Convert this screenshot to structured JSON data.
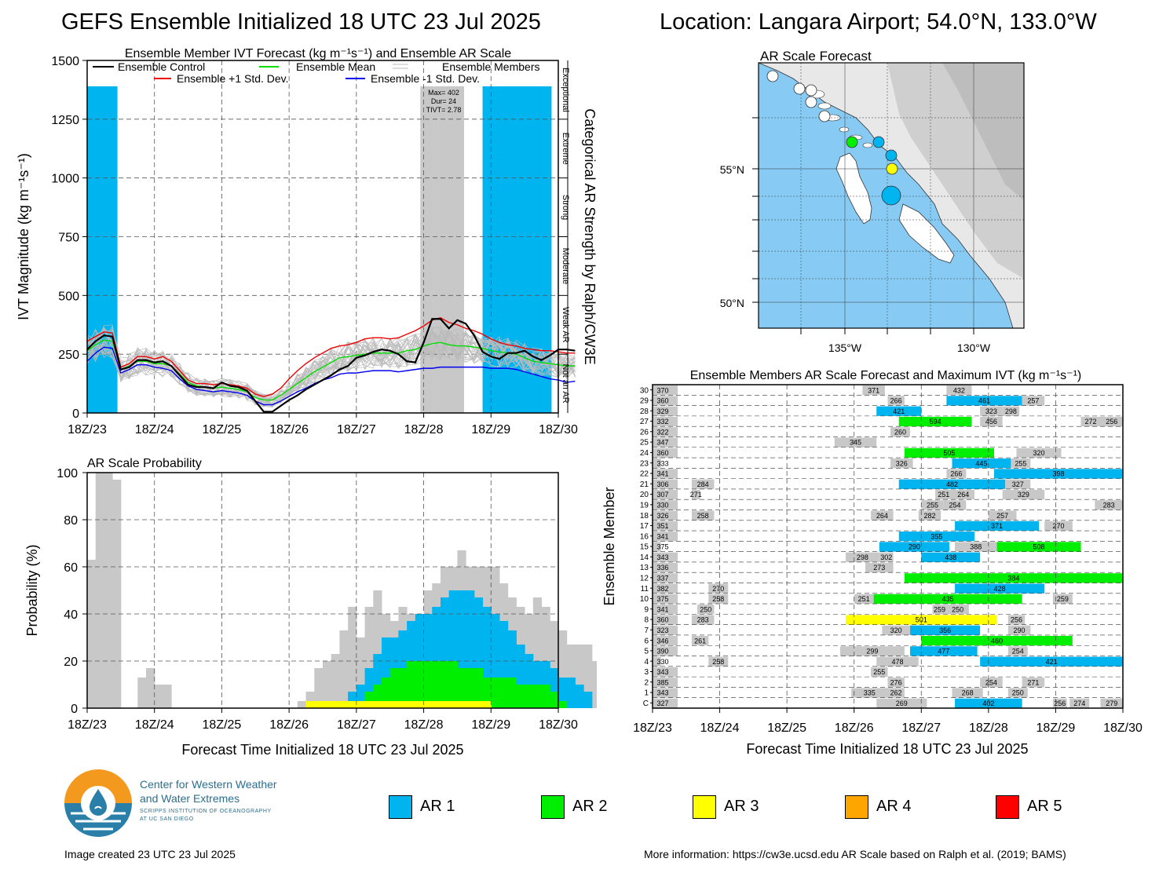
{
  "header": {
    "title": "GEFS Ensemble Initialized 18 UTC 23 Jul 2025",
    "location": "Location: Langara Airport; 54.0°N, 133.0°W"
  },
  "colors": {
    "ar1": "#00b4f0",
    "ar2": "#00ee00",
    "ar3": "#ffff00",
    "ar4": "#ffa500",
    "ar5": "#ff0000",
    "gray": "#c8c8c8",
    "ocean": "#87cbf5"
  },
  "time_ticks": [
    "18Z/23",
    "18Z/24",
    "18Z/25",
    "18Z/26",
    "18Z/27",
    "18Z/28",
    "18Z/29",
    "18Z/30"
  ],
  "chart_data": [
    {
      "type": "line",
      "title": "Ensemble Member IVT Forecast (kg m⁻¹s⁻¹) and Ensemble AR Scale",
      "ylabel": "IVT Magnitude (kg m⁻¹s⁻¹)",
      "ylabel_right": "Categorical AR Strength by Ralph/CW3E",
      "ylim": [
        0,
        1500
      ],
      "yticks": [
        0,
        250,
        500,
        750,
        1000,
        1250,
        1500
      ],
      "category_labels": [
        "Not an AR",
        "Weak AR",
        "Moderate",
        "Strong",
        "Extreme",
        "Exceptional"
      ],
      "legend": {
        "control": "Ensemble Control",
        "mean": "Ensemble Mean",
        "members": "Ensemble Members",
        "plus": "Ensemble +1 Std. Dev.",
        "minus": "Ensemble -1 Std. Dev."
      },
      "annotation": {
        "max": "Max= 402",
        "dur": "Dur= 24",
        "tivt": "TIVT= 2.78"
      },
      "x_hours_step": 6,
      "series": [
        {
          "name": "Ensemble Control",
          "color": "#000000",
          "values": [
            270,
            305,
            330,
            325,
            185,
            195,
            225,
            225,
            215,
            220,
            200,
            160,
            120,
            110,
            110,
            105,
            130,
            115,
            110,
            95,
            50,
            5,
            5,
            30,
            55,
            75,
            100,
            120,
            140,
            160,
            185,
            200,
            235,
            245,
            260,
            270,
            265,
            250,
            220,
            215,
            300,
            400,
            400,
            360,
            395,
            380,
            330,
            260,
            240,
            230,
            255,
            255,
            265,
            240,
            225,
            245,
            270,
            270,
            265
          ]
        },
        {
          "name": "Ensemble Mean",
          "color": "#00dd00",
          "values": [
            265,
            290,
            310,
            305,
            185,
            200,
            220,
            220,
            210,
            210,
            200,
            165,
            130,
            115,
            110,
            105,
            110,
            105,
            100,
            90,
            65,
            55,
            55,
            75,
            100,
            125,
            150,
            175,
            195,
            215,
            235,
            240,
            245,
            250,
            255,
            255,
            255,
            255,
            265,
            270,
            285,
            295,
            300,
            290,
            285,
            285,
            280,
            275,
            265,
            260,
            255,
            250,
            235,
            220,
            215,
            210,
            205,
            200,
            200
          ]
        },
        {
          "name": "Ensemble +1 Std. Dev.",
          "color": "#ee0000",
          "values": [
            305,
            325,
            345,
            340,
            195,
            210,
            240,
            240,
            230,
            240,
            220,
            180,
            140,
            125,
            125,
            120,
            125,
            120,
            115,
            105,
            80,
            70,
            80,
            105,
            145,
            180,
            210,
            235,
            255,
            275,
            285,
            290,
            300,
            315,
            320,
            320,
            315,
            320,
            335,
            350,
            370,
            395,
            405,
            385,
            375,
            360,
            350,
            335,
            315,
            300,
            290,
            285,
            275,
            270,
            265,
            265,
            260,
            255,
            255
          ]
        },
        {
          "name": "Ensemble -1 Std. Dev.",
          "color": "#0000ee",
          "values": [
            220,
            255,
            280,
            275,
            170,
            185,
            205,
            205,
            195,
            190,
            180,
            145,
            115,
            100,
            95,
            90,
            95,
            90,
            85,
            75,
            50,
            35,
            35,
            50,
            70,
            90,
            105,
            125,
            140,
            150,
            165,
            170,
            170,
            175,
            180,
            180,
            180,
            175,
            180,
            185,
            190,
            190,
            195,
            195,
            195,
            195,
            195,
            195,
            190,
            190,
            190,
            185,
            175,
            165,
            155,
            145,
            140,
            130,
            135
          ]
        }
      ],
      "ar_shading": [
        {
          "start": 0,
          "end": 0.9,
          "top": 1390,
          "class": "ar1"
        },
        {
          "start": 9.9,
          "end": 10.3,
          "top": 1390,
          "class": "gray"
        },
        {
          "start": 10.3,
          "end": 11.2,
          "top": 1390,
          "class": "gray"
        },
        {
          "start": 11.75,
          "end": 13.8,
          "top": 1390,
          "class": "ar1"
        },
        {
          "start": 15.85,
          "end": 16.2,
          "top": 1390,
          "class": "gray"
        },
        {
          "start": 16.75,
          "end": 17.0,
          "top": 1390,
          "class": "gray"
        }
      ]
    },
    {
      "type": "area",
      "title": "AR Scale Probability",
      "ylabel": "Probability (%)",
      "ylim": [
        0,
        100
      ],
      "yticks": [
        0,
        20,
        40,
        60,
        80,
        100
      ],
      "xlabel": "Forecast Time Initialized 18 UTC 23 Jul 2025",
      "x_hours_step": 3,
      "series": [
        {
          "name": "AR 1+",
          "class": "gray",
          "values": [
            63,
            100,
            100,
            97,
            0,
            0,
            0,
            0,
            0,
            0,
            0,
            0,
            0,
            0,
            0,
            0,
            0,
            0,
            0,
            0,
            0,
            0,
            0,
            0,
            0,
            0,
            0,
            0,
            0,
            0,
            0,
            0,
            0,
            0,
            0,
            0,
            0,
            0,
            0,
            0,
            0,
            0,
            0,
            0,
            0,
            0,
            0,
            0,
            0,
            0,
            0,
            0,
            0,
            0,
            0,
            0,
            0,
            0,
            0,
            0,
            0,
            0,
            0,
            0,
            0,
            0,
            0,
            0,
            0,
            0,
            0,
            0,
            0,
            0,
            0,
            0,
            0,
            0,
            0,
            0,
            0,
            0,
            0,
            0,
            0,
            0,
            0,
            0,
            0,
            0,
            0,
            0,
            0,
            0,
            0,
            0,
            0,
            0,
            0,
            0,
            0,
            0,
            0,
            0,
            0,
            0,
            0,
            0,
            0,
            0,
            0,
            0,
            0,
            0,
            0,
            0,
            0
          ]
        },
        {
          "name": "AR 1+ prob",
          "class": "gray",
          "values": [
            63,
            100,
            100,
            97,
            0,
            0,
            13,
            17,
            10,
            10,
            0,
            0,
            0,
            0,
            0,
            0,
            0,
            0,
            0,
            0,
            0,
            0,
            0,
            0,
            0,
            0,
            0,
            0,
            0,
            0,
            0,
            0,
            0,
            0,
            0,
            0,
            0,
            0,
            0,
            0,
            0,
            0,
            0,
            0,
            0,
            0,
            0,
            0,
            0,
            0,
            0,
            0,
            0,
            0,
            0,
            0,
            0,
            0,
            0,
            0,
            0,
            0,
            0,
            0,
            0,
            0,
            0,
            0,
            0,
            0,
            0,
            0,
            0,
            0,
            0,
            0,
            0,
            0,
            0,
            0,
            0,
            0,
            0,
            0,
            0,
            0,
            0,
            0,
            0,
            0,
            0,
            0,
            0,
            0,
            0,
            0,
            0,
            0,
            0,
            0,
            0,
            0,
            0,
            0,
            0,
            0,
            0,
            0,
            0,
            0,
            0,
            0,
            0,
            0,
            0,
            0,
            0
          ]
        }
      ]
    },
    {
      "type": "table",
      "title": "Ensemble Members AR Scale Forecast and Maximum IVT (kg m⁻¹s⁻¹)",
      "ylabel": "Ensemble Member",
      "xlabel": "Forecast Time Initialized 18 UTC 23 Jul 2025",
      "member_labels": [
        "C",
        "1",
        "2",
        "3",
        "4",
        "5",
        "6",
        "7",
        "8",
        "9",
        "10",
        "11",
        "12",
        "13",
        "14",
        "15",
        "16",
        "17",
        "18",
        "19",
        "20",
        "21",
        "22",
        "23",
        "24",
        "25",
        "26",
        "27",
        "28",
        "29",
        "30"
      ]
    }
  ],
  "map": {
    "title": "AR Scale Forecast",
    "lat_labels": [
      "55°N",
      "50°N"
    ],
    "lon_labels": [
      "135°W",
      "130°W"
    ]
  },
  "legend": [
    {
      "label": "AR 1",
      "color": "#00b4f0"
    },
    {
      "label": "AR 2",
      "color": "#00ee00"
    },
    {
      "label": "AR 3",
      "color": "#ffff00"
    },
    {
      "label": "AR 4",
      "color": "#ffa500"
    },
    {
      "label": "AR 5",
      "color": "#ff0000"
    }
  ],
  "logo": {
    "line1": "Center for Western Weather",
    "line2": "and Water Extremes",
    "line3": "SCRIPPS INSTITUTION OF OCEANOGRAPHY",
    "line4": "AT UC SAN DIEGO"
  },
  "footer": {
    "created": "Image created 23 UTC 23 Jul 2025",
    "info": "More information: https://cw3e.ucsd.edu AR Scale based on Ralph et al. (2019; BAMS)"
  }
}
